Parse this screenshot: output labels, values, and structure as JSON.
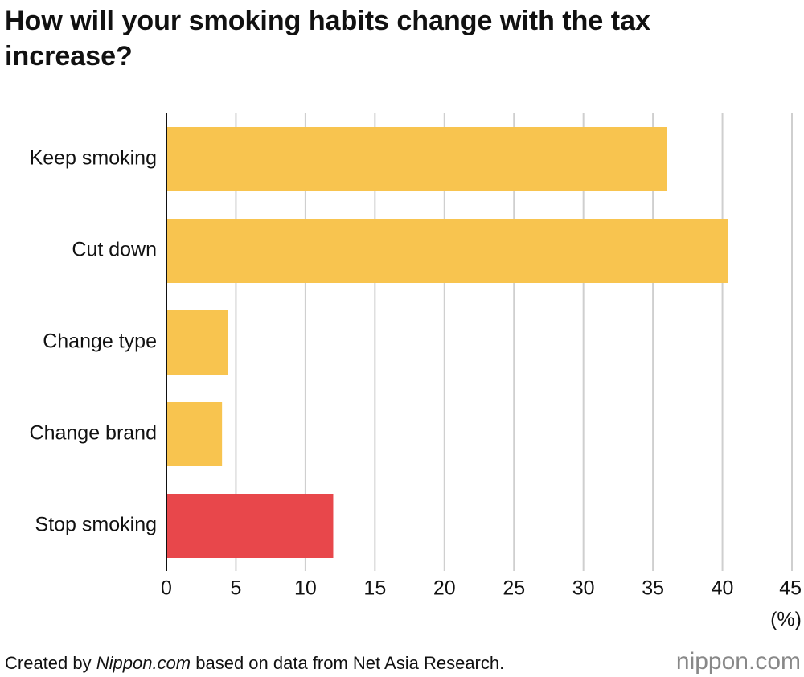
{
  "chart_data": {
    "type": "bar",
    "orientation": "horizontal",
    "title": "How will your smoking habits change with the tax increase?",
    "categories": [
      "Keep smoking",
      "Cut down",
      "Change type",
      "Change brand",
      "Stop smoking"
    ],
    "values": [
      36,
      40.4,
      4.4,
      4,
      12
    ],
    "colors": [
      "#f8c44f",
      "#f8c44f",
      "#f8c44f",
      "#f8c44f",
      "#e8474b"
    ],
    "xlim": [
      0,
      45
    ],
    "xticks": [
      0,
      5,
      10,
      15,
      20,
      25,
      30,
      35,
      40,
      45
    ],
    "x_label": "(%)",
    "grid": true,
    "source": [
      "Created by ",
      "Nippon.com",
      " based on data from Net Asia Research."
    ],
    "logo": "nippon.com"
  }
}
